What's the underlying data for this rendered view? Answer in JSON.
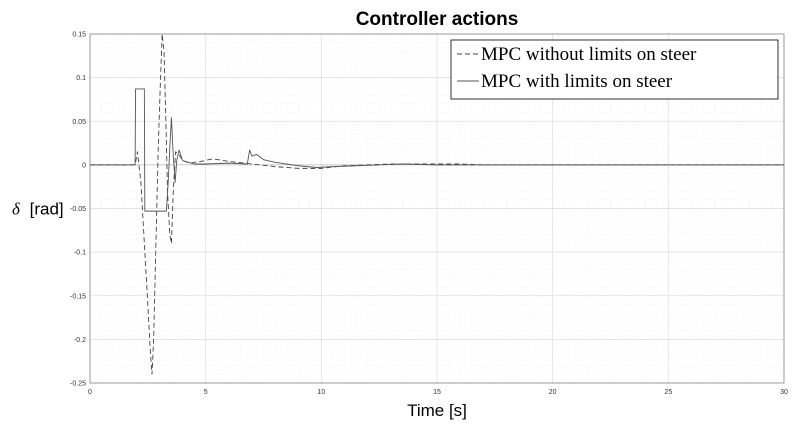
{
  "chart_data": {
    "type": "line",
    "title": "Controller actions",
    "xlabel": "Time [s]",
    "ylabel_symbol": "δ",
    "ylabel_unit": "[rad]",
    "xlim": [
      0,
      30
    ],
    "ylim": [
      -0.25,
      0.15
    ],
    "x_ticks": [
      "0",
      "5",
      "10",
      "15",
      "20",
      "25",
      "30"
    ],
    "y_ticks": [
      "0.15",
      "0.1",
      "0.05",
      "0",
      "-0.05",
      "-0.1",
      "-0.15",
      "-0.2",
      "-0.25"
    ],
    "grid": true,
    "minor_grid": true,
    "legend_position": "top-right",
    "series": [
      {
        "name": "MPC without limits on steer",
        "style": "dashed",
        "color": "#444444",
        "points": [
          [
            0,
            0
          ],
          [
            1.95,
            0
          ],
          [
            2.05,
            0.015
          ],
          [
            2.2,
            -0.02
          ],
          [
            2.35,
            -0.09
          ],
          [
            2.5,
            -0.16
          ],
          [
            2.6,
            -0.21
          ],
          [
            2.68,
            -0.24
          ],
          [
            2.75,
            -0.2
          ],
          [
            2.85,
            -0.09
          ],
          [
            2.95,
            0.02
          ],
          [
            3.05,
            0.1
          ],
          [
            3.12,
            0.15
          ],
          [
            3.2,
            0.13
          ],
          [
            3.28,
            0.05
          ],
          [
            3.35,
            -0.03
          ],
          [
            3.45,
            -0.08
          ],
          [
            3.52,
            -0.09
          ],
          [
            3.6,
            -0.03
          ],
          [
            3.7,
            0.015
          ],
          [
            3.85,
            0.012
          ],
          [
            4.0,
            0.005
          ],
          [
            4.3,
            0.002
          ],
          [
            4.8,
            0.004
          ],
          [
            5.3,
            0.007
          ],
          [
            6,
            0.004
          ],
          [
            7,
            0.001
          ],
          [
            8,
            -0.002
          ],
          [
            9,
            -0.004
          ],
          [
            10,
            -0.004
          ],
          [
            11,
            -0.001
          ],
          [
            12,
            0.0
          ],
          [
            13,
            0.001
          ],
          [
            14,
            0.001
          ],
          [
            15,
            0.001
          ],
          [
            16,
            0.001
          ],
          [
            17,
            0.0
          ],
          [
            18,
            0.0
          ],
          [
            19,
            0.0
          ],
          [
            20,
            0.0
          ],
          [
            30,
            0.0
          ]
        ]
      },
      {
        "name": "MPC with limits on steer",
        "style": "solid",
        "color": "#555555",
        "points": [
          [
            0,
            0
          ],
          [
            1.95,
            0
          ],
          [
            1.97,
            0.087
          ],
          [
            2.35,
            0.087
          ],
          [
            2.37,
            -0.053
          ],
          [
            3.3,
            -0.053
          ],
          [
            3.38,
            -0.02
          ],
          [
            3.45,
            0.02
          ],
          [
            3.52,
            0.054
          ],
          [
            3.6,
            0.01
          ],
          [
            3.68,
            -0.02
          ],
          [
            3.75,
            0.005
          ],
          [
            3.85,
            0.017
          ],
          [
            4.0,
            0.005
          ],
          [
            4.5,
            0.001
          ],
          [
            5,
            0.001
          ],
          [
            6,
            0.002
          ],
          [
            6.8,
            0.001
          ],
          [
            6.9,
            0.017
          ],
          [
            7.0,
            0.01
          ],
          [
            7.2,
            0.012
          ],
          [
            7.5,
            0.006
          ],
          [
            8,
            0.003
          ],
          [
            9,
            -0.001
          ],
          [
            9.8,
            -0.003
          ],
          [
            10.5,
            -0.002
          ],
          [
            11.5,
            -0.001
          ],
          [
            12.5,
            0.0
          ],
          [
            13.5,
            0.001
          ],
          [
            15,
            0.0
          ],
          [
            16,
            0.0
          ],
          [
            17,
            0.0
          ],
          [
            18,
            0.0
          ],
          [
            19,
            0.0
          ],
          [
            30,
            0.0
          ]
        ]
      }
    ]
  }
}
